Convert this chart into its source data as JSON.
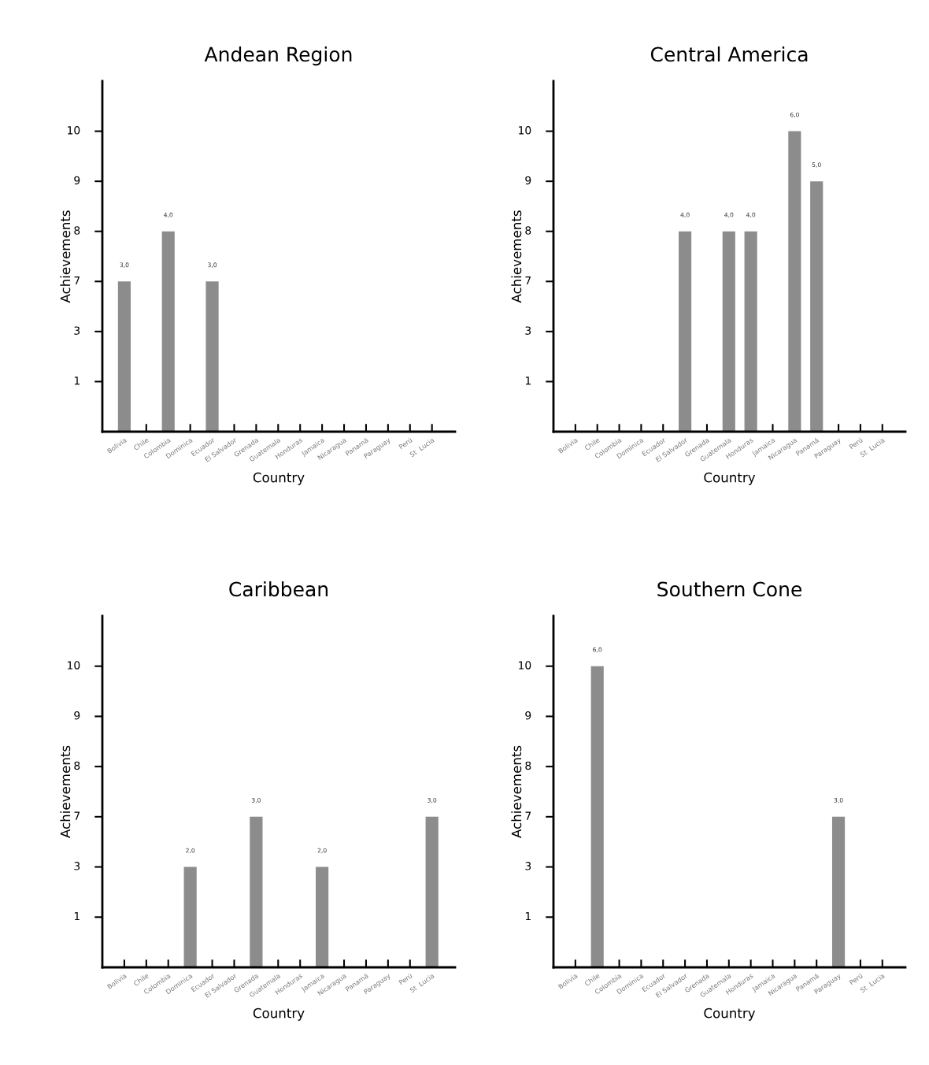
{
  "chart_data": [
    {
      "type": "bar",
      "title": "Andean Region",
      "xlabel": "Country",
      "ylabel": "Achievements",
      "categories": [
        "Bolivia",
        "Chile",
        "Colombia",
        "Dominica",
        "Ecuador",
        "El Salvador",
        "Grenada",
        "Guatemala",
        "Honduras",
        "Jamaica",
        "Nicaragua",
        "Panamá",
        "Paraguay",
        "Perú",
        "St  Lucia"
      ],
      "values": [
        3,
        null,
        4,
        null,
        3,
        null,
        null,
        null,
        null,
        null,
        null,
        null,
        null,
        null,
        null
      ],
      "value_labels": [
        "3,0",
        null,
        "4,0",
        null,
        "3,0",
        null,
        null,
        null,
        null,
        null,
        null,
        null,
        null,
        null,
        null
      ],
      "color": "#8c8c8c",
      "ylim": [
        0,
        7
      ],
      "yticks": [
        {
          "value": 1,
          "label": null
        },
        {
          "value": 2,
          "label": null
        },
        {
          "value": 3,
          "label": null
        },
        {
          "value": 4,
          "label": null
        },
        {
          "value": 5,
          "label": null
        },
        {
          "value": 6,
          "label": null
        }
      ],
      "annotations": [
        "1",
        "3",
        "7",
        "8",
        "9",
        "10"
      ],
      "grid": false
    },
    {
      "type": "bar",
      "title": "Central America",
      "xlabel": "Country",
      "ylabel": "Achievements",
      "categories": [
        "Bolivia",
        "Chile",
        "Colombia",
        "Dominica",
        "Ecuador",
        "El Salvador",
        "Grenada",
        "Guatemala",
        "Honduras",
        "Jamaica",
        "Nicaragua",
        "Panamá",
        "Paraguay",
        "Perú",
        "St  Lucia"
      ],
      "values": [
        null,
        null,
        null,
        null,
        null,
        4,
        null,
        4,
        4,
        null,
        6,
        5,
        null,
        null,
        null
      ],
      "value_labels": [
        null,
        null,
        null,
        null,
        null,
        "4,0",
        null,
        "4,0",
        "4,0",
        null,
        "6,0",
        "5,0",
        null,
        null,
        null
      ],
      "color": "#8c8c8c",
      "ylim": [
        0,
        7
      ],
      "yticks": [
        {
          "value": 1,
          "label": null
        },
        {
          "value": 2,
          "label": null
        },
        {
          "value": 3,
          "label": null
        },
        {
          "value": 4,
          "label": null
        },
        {
          "value": 5,
          "label": null
        },
        {
          "value": 6,
          "label": null
        }
      ],
      "annotations": [
        "1",
        "3",
        "7",
        "8",
        "9",
        "10"
      ],
      "grid": false
    },
    {
      "type": "bar",
      "title": "Caribbean",
      "xlabel": "Country",
      "ylabel": "Achievements",
      "categories": [
        "Bolivia",
        "Chile",
        "Colombia",
        "Dominica",
        "Ecuador",
        "El Salvador",
        "Grenada",
        "Guatemala",
        "Honduras",
        "Jamaica",
        "Nicaragua",
        "Panamá",
        "Paraguay",
        "Perú",
        "St  Lucia"
      ],
      "values": [
        null,
        null,
        null,
        2,
        null,
        null,
        3,
        null,
        null,
        2,
        null,
        null,
        null,
        null,
        3
      ],
      "value_labels": [
        null,
        null,
        null,
        "2,0",
        null,
        null,
        "3,0",
        null,
        null,
        "2,0",
        null,
        null,
        null,
        null,
        "3,0"
      ],
      "color": "#8c8c8c",
      "ylim": [
        0,
        7
      ],
      "yticks": [
        {
          "value": 1,
          "label": null
        },
        {
          "value": 2,
          "label": null
        },
        {
          "value": 3,
          "label": null
        },
        {
          "value": 4,
          "label": null
        },
        {
          "value": 5,
          "label": null
        },
        {
          "value": 6,
          "label": null
        }
      ],
      "annotations": [
        "1",
        "3",
        "7",
        "8",
        "9",
        "10"
      ],
      "grid": false
    },
    {
      "type": "bar",
      "title": "Southern Cone",
      "xlabel": "Country",
      "ylabel": "Achievements",
      "categories": [
        "Bolivia",
        "Chile",
        "Colombia",
        "Dominica",
        "Ecuador",
        "El Salvador",
        "Grenada",
        "Guatemala",
        "Honduras",
        "Jamaica",
        "Nicaragua",
        "Panamá",
        "Paraguay",
        "Perú",
        "St  Lucia"
      ],
      "values": [
        null,
        6,
        null,
        null,
        null,
        null,
        null,
        null,
        null,
        null,
        null,
        null,
        3,
        null,
        null
      ],
      "value_labels": [
        null,
        "6,0",
        null,
        null,
        null,
        null,
        null,
        null,
        null,
        null,
        null,
        null,
        "3,0",
        null,
        null
      ],
      "color": "#8c8c8c",
      "ylim": [
        0,
        7
      ],
      "yticks": [
        {
          "value": 1,
          "label": null
        },
        {
          "value": 2,
          "label": null
        },
        {
          "value": 3,
          "label": null
        },
        {
          "value": 4,
          "label": null
        },
        {
          "value": 5,
          "label": null
        },
        {
          "value": 6,
          "label": null
        }
      ],
      "annotations": [
        "1",
        "3",
        "7",
        "8",
        "9",
        "10"
      ],
      "grid": false
    }
  ]
}
